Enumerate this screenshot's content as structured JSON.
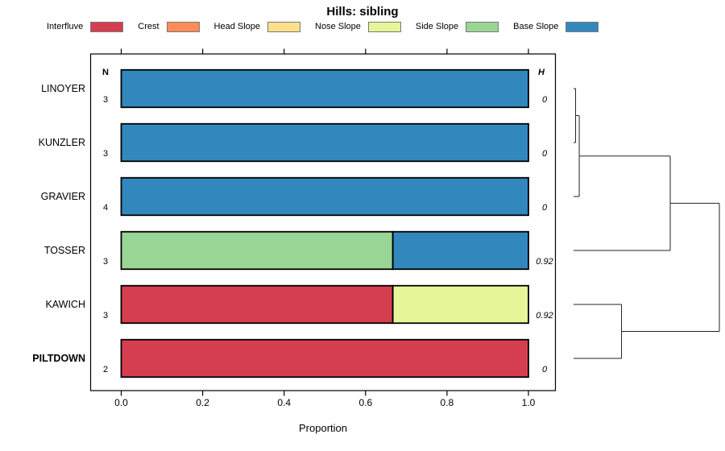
{
  "chart_data": {
    "type": "bar",
    "orientation": "horizontal-stacked",
    "title": "Hills: sibling",
    "xlabel": "Proportion",
    "xlim": [
      0,
      1
    ],
    "x_ticks": [
      {
        "value": 0.0,
        "label": "0.0"
      },
      {
        "value": 0.2,
        "label": "0.2"
      },
      {
        "value": 0.4,
        "label": "0.4"
      },
      {
        "value": 0.6,
        "label": "0.6"
      },
      {
        "value": 0.8,
        "label": "0.8"
      },
      {
        "value": 1.0,
        "label": "1.0"
      }
    ],
    "legend": [
      {
        "label": "Interfluve",
        "color": "#D53E4F"
      },
      {
        "label": "Crest",
        "color": "#FC8D59"
      },
      {
        "label": "Head Slope",
        "color": "#FEE08B"
      },
      {
        "label": "Nose Slope",
        "color": "#E6F598"
      },
      {
        "label": "Side Slope",
        "color": "#99D594"
      },
      {
        "label": "Base Slope",
        "color": "#3288BD"
      }
    ],
    "columns": {
      "left_header": "N",
      "right_header": "H"
    },
    "rows": [
      {
        "name": "LINOYER",
        "bold": false,
        "n": "3",
        "h": "0",
        "segments": [
          {
            "class": "Base Slope",
            "value": 1.0
          }
        ]
      },
      {
        "name": "KUNZLER",
        "bold": false,
        "n": "3",
        "h": "0",
        "segments": [
          {
            "class": "Base Slope",
            "value": 1.0
          }
        ]
      },
      {
        "name": "GRAVIER",
        "bold": false,
        "n": "4",
        "h": "0",
        "segments": [
          {
            "class": "Base Slope",
            "value": 1.0
          }
        ]
      },
      {
        "name": "TOSSER",
        "bold": false,
        "n": "3",
        "h": "0.92",
        "segments": [
          {
            "class": "Side Slope",
            "value": 0.667
          },
          {
            "class": "Base Slope",
            "value": 0.333
          }
        ]
      },
      {
        "name": "KAWICH",
        "bold": false,
        "n": "3",
        "h": "0.92",
        "segments": [
          {
            "class": "Interfluve",
            "value": 0.667
          },
          {
            "class": "Nose Slope",
            "value": 0.333
          }
        ]
      },
      {
        "name": "PILTDOWN",
        "bold": true,
        "n": "2",
        "h": "0",
        "segments": [
          {
            "class": "Interfluve",
            "value": 1.0
          }
        ]
      }
    ],
    "dendrogram": {
      "leaves": [
        "LINOYER",
        "KUNZLER",
        "GRAVIER",
        "TOSSER",
        "KAWICH",
        "PILTDOWN"
      ],
      "merges": [
        {
          "a": "leaf:0",
          "b": "leaf:1",
          "height": 0.014
        },
        {
          "a": "merge:0",
          "b": "leaf:2",
          "height": 0.039
        },
        {
          "a": "merge:1",
          "b": "leaf:3",
          "height": 0.663
        },
        {
          "a": "leaf:4",
          "b": "leaf:5",
          "height": 0.329
        },
        {
          "a": "merge:2",
          "b": "merge:3",
          "height": 1.0
        }
      ]
    }
  }
}
